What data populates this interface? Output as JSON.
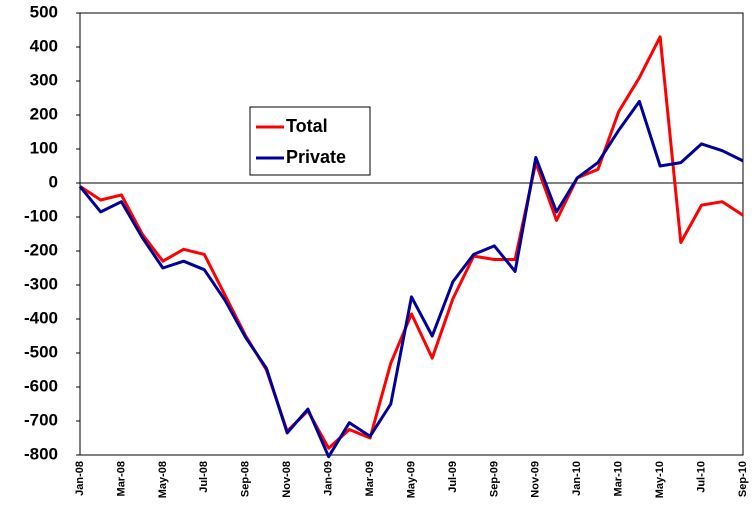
{
  "chart_data": {
    "type": "line",
    "categories": [
      "Jan-08",
      null,
      "Mar-08",
      null,
      "May-08",
      null,
      "Jul-08",
      null,
      "Sep-08",
      null,
      "Nov-08",
      null,
      "Jan-09",
      null,
      "Mar-09",
      null,
      "May-09",
      null,
      "Jul-09",
      null,
      "Sep-09",
      null,
      "Nov-09",
      null,
      "Jan-10",
      null,
      "Mar-10",
      null,
      "May-10",
      null,
      "Jul-10",
      null,
      "Sep-10"
    ],
    "series": [
      {
        "name": "Total",
        "color": "#ff0000",
        "values": [
          -10,
          -50,
          -35,
          -150,
          -230,
          -195,
          -210,
          -330,
          -450,
          -550,
          -730,
          -670,
          -780,
          -725,
          -750,
          -530,
          -385,
          -515,
          -340,
          -215,
          -225,
          -225,
          60,
          -110,
          15,
          40,
          210,
          310,
          430,
          -175,
          -65,
          -55,
          -95
        ]
      },
      {
        "name": "Private",
        "color": "#000099",
        "values": [
          -10,
          -85,
          -55,
          -160,
          -250,
          -230,
          -255,
          -345,
          -455,
          -545,
          -735,
          -665,
          -805,
          -705,
          -745,
          -650,
          -335,
          -450,
          -290,
          -210,
          -185,
          -260,
          75,
          -85,
          15,
          60,
          155,
          240,
          50,
          60,
          115,
          95,
          65
        ]
      }
    ],
    "ylim": [
      -800,
      500
    ],
    "yticks": [
      -800,
      -700,
      -600,
      -500,
      -400,
      -300,
      -200,
      -100,
      0,
      100,
      200,
      300,
      400,
      500
    ],
    "grid": false,
    "legend": "upper-left"
  }
}
